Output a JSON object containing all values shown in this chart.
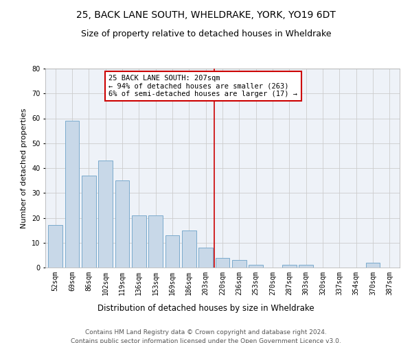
{
  "title1": "25, BACK LANE SOUTH, WHELDRAKE, YORK, YO19 6DT",
  "title2": "Size of property relative to detached houses in Wheldrake",
  "xlabel": "Distribution of detached houses by size in Wheldrake",
  "ylabel": "Number of detached properties",
  "bar_labels": [
    "52sqm",
    "69sqm",
    "86sqm",
    "102sqm",
    "119sqm",
    "136sqm",
    "153sqm",
    "169sqm",
    "186sqm",
    "203sqm",
    "220sqm",
    "236sqm",
    "253sqm",
    "270sqm",
    "287sqm",
    "303sqm",
    "320sqm",
    "337sqm",
    "354sqm",
    "370sqm",
    "387sqm"
  ],
  "bar_values": [
    17,
    59,
    37,
    43,
    35,
    21,
    21,
    13,
    15,
    8,
    4,
    3,
    1,
    0,
    1,
    1,
    0,
    0,
    0,
    2,
    0
  ],
  "bar_color": "#c8d8e8",
  "bar_edgecolor": "#7aaacc",
  "vline_x": 9.5,
  "vline_color": "#cc0000",
  "annotation_text": "25 BACK LANE SOUTH: 207sqm\n← 94% of detached houses are smaller (263)\n6% of semi-detached houses are larger (17) →",
  "annotation_box_color": "#cc0000",
  "ylim": [
    0,
    80
  ],
  "yticks": [
    0,
    10,
    20,
    30,
    40,
    50,
    60,
    70,
    80
  ],
  "grid_color": "#cccccc",
  "background_color": "#eef2f8",
  "footer": "Contains HM Land Registry data © Crown copyright and database right 2024.\nContains public sector information licensed under the Open Government Licence v3.0.",
  "title1_fontsize": 10,
  "title2_fontsize": 9,
  "xlabel_fontsize": 8.5,
  "ylabel_fontsize": 8,
  "tick_fontsize": 7,
  "annotation_fontsize": 7.5,
  "footer_fontsize": 6.5
}
